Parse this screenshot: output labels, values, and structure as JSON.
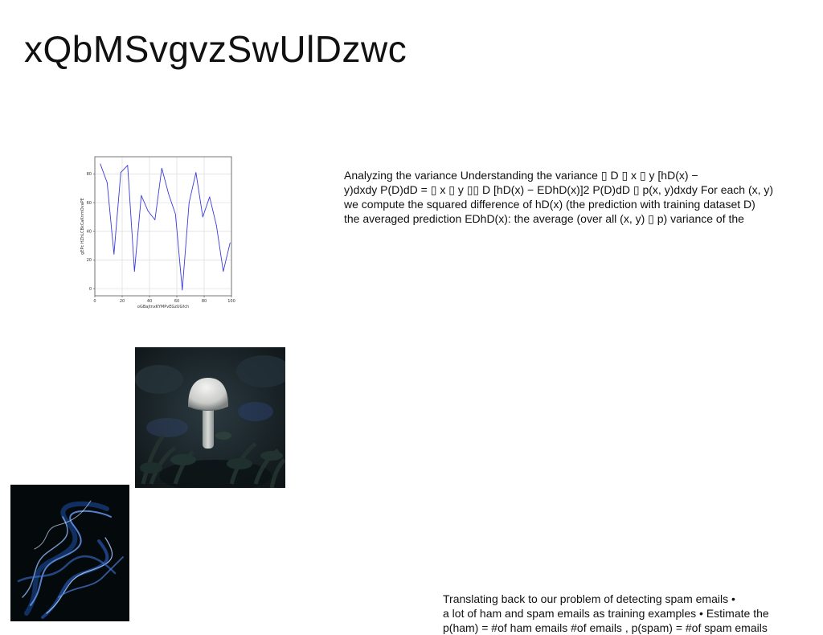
{
  "slide": {
    "title": "xQbMSvgvzSwUlDzwc",
    "body_lines": [
      "Analyzing the variance Understanding the variance ▯ D ▯ x ▯ y [hD(x) −",
      "y)dxdy P(D)dD = ▯ x ▯ y ▯▯ D [hD(x) − EDhD(x)]2 P(D)dD ▯ p(x, y)dxdy For each (x, y)",
      "we compute the squared difference of hD(x) (the prediction with training dataset D)",
      "the averaged prediction EDhD(x): the average (over all (x, y) ▯ p) variance of the"
    ],
    "bottom_lines": [
      "Translating back to our problem of detecting spam emails •",
      "a lot of ham and spam emails as training examples • Estimate the",
      "p(ham) = #of ham emails #of emails , p(spam) = #of spam emails"
    ],
    "images": {
      "mushroom_photo": "photo-mushroom",
      "smoke_photo": "photo-smoke"
    }
  },
  "chart_data": {
    "type": "line",
    "xlabel": "oGBajtnxKYMPvEGzUGfch",
    "ylabel": "gEPc HZhLCBkCaKnmOvaPE",
    "xlim": [
      0,
      100
    ],
    "ylim": [
      -5,
      92
    ],
    "xticks": [
      "0",
      "20",
      "40",
      "60",
      "80",
      "100"
    ],
    "yticks": [
      "0",
      "20",
      "40",
      "60",
      "80"
    ],
    "grid": true,
    "color": "#3b3bdc",
    "series": [
      {
        "x": [
          4,
          9,
          14,
          19,
          24,
          29,
          34,
          39,
          44,
          49,
          54,
          59,
          64,
          69,
          74,
          79,
          84,
          89,
          94,
          99
        ],
        "values": [
          87,
          74,
          24,
          81,
          86,
          12,
          65,
          54,
          48,
          84,
          66,
          52,
          -1,
          60,
          81,
          50,
          64,
          44,
          12,
          32
        ]
      }
    ]
  }
}
